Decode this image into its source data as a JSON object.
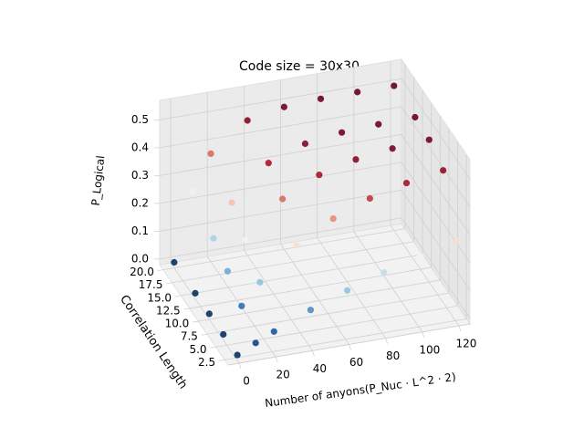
{
  "chart_data": {
    "type": "scatter3d",
    "title": "Code size = 30x30",
    "x_label": "Number of anyons(P_Nuc · L^2 · 2)",
    "y_label": "Correlation Length",
    "z_label": "P_Logical",
    "x": [
      0,
      10,
      20,
      40,
      60,
      80,
      100,
      120,
      0,
      10,
      20,
      40,
      60,
      80,
      100,
      120,
      0,
      10,
      20,
      40,
      60,
      80,
      100,
      120,
      0,
      10,
      20,
      40,
      60,
      80,
      100,
      120,
      0,
      10,
      20,
      40,
      60,
      80,
      100,
      120
    ],
    "y": [
      2,
      2,
      2,
      2,
      2,
      2,
      2,
      2,
      6,
      6,
      6,
      6,
      6,
      6,
      6,
      6,
      10,
      10,
      10,
      10,
      10,
      10,
      10,
      10,
      14,
      14,
      14,
      14,
      14,
      14,
      14,
      14,
      20,
      20,
      20,
      20,
      20,
      20,
      20,
      20
    ],
    "z": [
      0,
      0.032,
      0.062,
      0.117,
      0.165,
      0.207,
      0.243,
      0.275,
      0,
      0.091,
      0.165,
      0.275,
      0.349,
      0.399,
      0.432,
      0.455,
      0,
      0.142,
      0.243,
      0.368,
      0.432,
      0.465,
      0.482,
      0.491,
      0,
      0.186,
      0.303,
      0.423,
      0.47,
      0.488,
      0.495,
      0.498,
      0,
      0.243,
      0.368,
      0.465,
      0.491,
      0.498,
      0.5,
      0.5
    ],
    "colormap": [
      "#053061",
      "#2166ac",
      "#92c5de",
      "#f7f7f7",
      "#f4a582",
      "#b2182b",
      "#67001f"
    ],
    "clim": [
      0,
      0.5
    ],
    "xlim": [
      -6,
      126
    ],
    "ylim": [
      1.5,
      21
    ],
    "zlim": [
      -0.02,
      0.57
    ],
    "xticks": [
      0,
      20,
      40,
      60,
      80,
      100,
      120
    ],
    "yticks": [
      2.5,
      {
        "value": 5,
        "label": "5.0"
      },
      7.5,
      {
        "value": 10,
        "label": "10.0"
      },
      12.5,
      {
        "value": 15,
        "label": "15.0"
      },
      17.5,
      {
        "value": 20,
        "label": "20.0"
      }
    ],
    "zticks": [
      {
        "value": 0,
        "label": "0.0"
      },
      0.1,
      0.2,
      0.3,
      0.4,
      0.5
    ],
    "grid": true
  }
}
